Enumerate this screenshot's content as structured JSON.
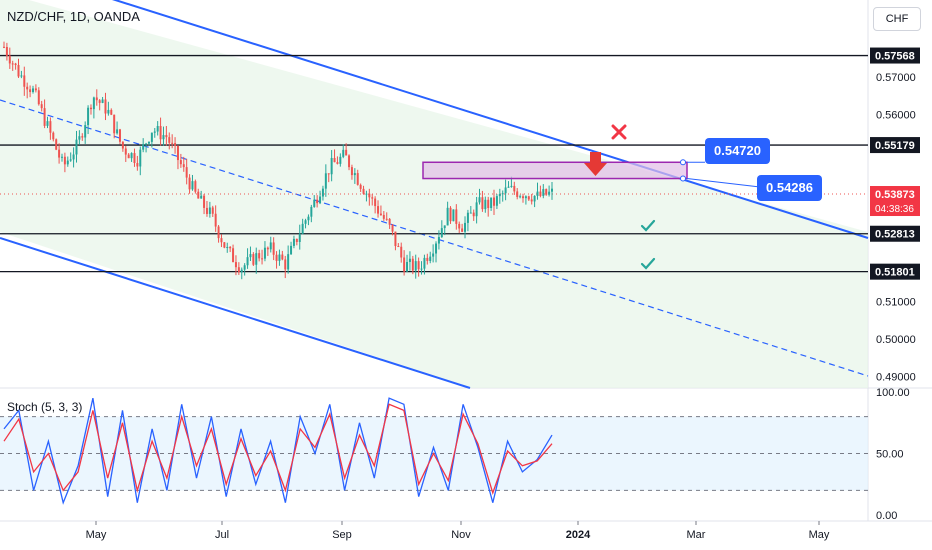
{
  "header": {
    "symbol_title": "NZD/CHF, 1D, OANDA",
    "currency_button": "CHF"
  },
  "chart_data": {
    "type": "candlestick",
    "symbol": "NZD/CHF",
    "timeframe": "1D",
    "source": "OANDA",
    "price_axis_ticks": [
      "0.57000",
      "0.56000",
      "0.51000",
      "0.50000",
      "0.49000"
    ],
    "time_axis_ticks": [
      "May",
      "Jul",
      "Sep",
      "Nov",
      "2024",
      "Mar",
      "May"
    ],
    "ylim": [
      0.4875,
      0.5905
    ],
    "horizontal_levels": [
      0.57568,
      0.55179,
      0.52813,
      0.51801
    ],
    "price_labels": [
      {
        "text": "0.57568",
        "value": 0.57568,
        "style": "black-box"
      },
      {
        "text": "0.55179",
        "value": 0.55179,
        "style": "black-box"
      },
      {
        "text": "0.53873",
        "value": 0.53873,
        "style": "current"
      },
      {
        "text": "04:38:36",
        "value": 0.53873,
        "style": "countdown"
      },
      {
        "text": "0.52813",
        "value": 0.52813,
        "style": "black-box"
      },
      {
        "text": "0.51801",
        "value": 0.51801,
        "style": "black-box"
      }
    ],
    "current_price": 0.53873,
    "countdown": "04:38:36",
    "zone": {
      "top": 0.5472,
      "bottom": 0.54286,
      "label_top": "0.54720",
      "label_bottom": "0.54286"
    },
    "callouts": [
      {
        "text": "0.54720",
        "value": 0.5472
      },
      {
        "text": "0.54286",
        "value": 0.54286
      }
    ],
    "annotations": [
      "sell-arrow",
      "invalidation-cross",
      "target-check-1",
      "target-check-2"
    ],
    "price_path": [
      0.578,
      0.571,
      0.566,
      0.556,
      0.546,
      0.552,
      0.565,
      0.561,
      0.551,
      0.548,
      0.556,
      0.554,
      0.546,
      0.538,
      0.533,
      0.524,
      0.519,
      0.522,
      0.524,
      0.52,
      0.529,
      0.537,
      0.546,
      0.549,
      0.542,
      0.536,
      0.53,
      0.52,
      0.519,
      0.525,
      0.534,
      0.53,
      0.536,
      0.536,
      0.54,
      0.539,
      0.538,
      0.539
    ],
    "indicator": {
      "name": "Stoch (5, 3, 3)",
      "axis_ticks": [
        "100.00",
        "50.00",
        "0.00"
      ],
      "bands": [
        80,
        50,
        20
      ],
      "ylim": [
        0,
        100
      ],
      "k_values": [
        70,
        85,
        20,
        60,
        10,
        40,
        95,
        15,
        85,
        10,
        70,
        20,
        90,
        30,
        80,
        15,
        70,
        25,
        60,
        10,
        80,
        50,
        90,
        20,
        75,
        30,
        95,
        90,
        15,
        55,
        20,
        90,
        55,
        10,
        60,
        35,
        45,
        65
      ],
      "d_values": [
        60,
        78,
        35,
        50,
        20,
        35,
        85,
        30,
        75,
        20,
        60,
        30,
        80,
        40,
        70,
        25,
        62,
        32,
        52,
        20,
        70,
        55,
        82,
        30,
        65,
        40,
        90,
        85,
        25,
        50,
        28,
        82,
        58,
        18,
        52,
        40,
        44,
        58
      ]
    },
    "colors": {
      "up": "#26a69a",
      "down": "#ef5350",
      "channel": "#2962ff",
      "zone": "#9c27b0",
      "k_line": "#2962ff",
      "d_line": "#f23645"
    }
  }
}
